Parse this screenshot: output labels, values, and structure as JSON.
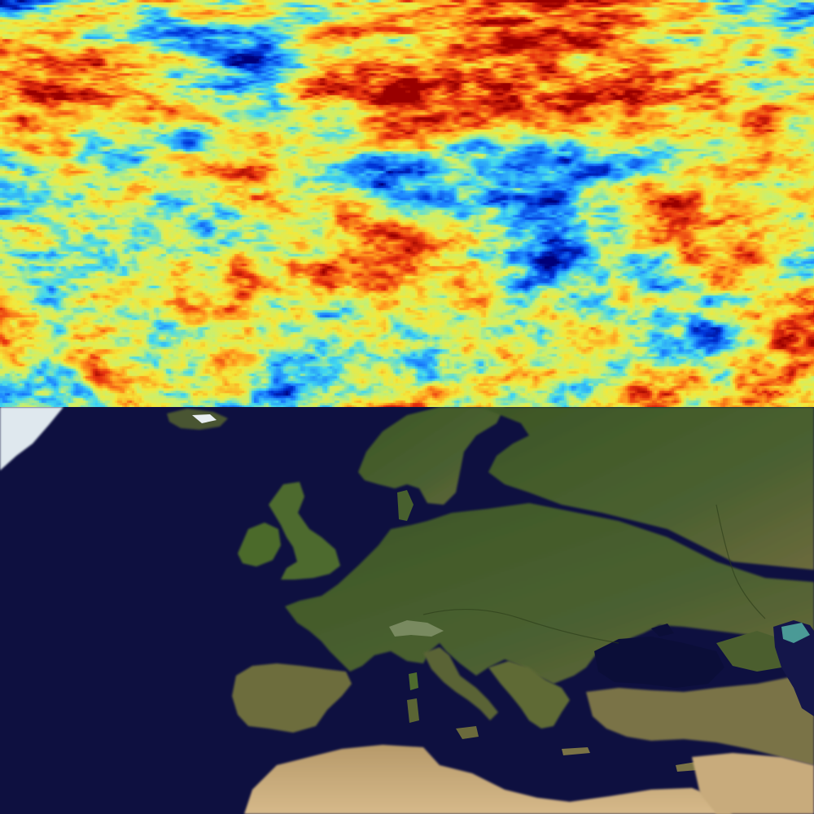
{
  "panels": [
    {
      "id": "cmb",
      "kind": "temperature-anisotropy-map",
      "colormap": [
        "#00007a",
        "#0033d6",
        "#1e88ff",
        "#42d8f0",
        "#c8f070",
        "#f4e83a",
        "#ff9a1e",
        "#e8330f",
        "#9a0000"
      ]
    },
    {
      "id": "earth",
      "kind": "satellite-map",
      "colors": {
        "ocean": "#0e1040",
        "land_green": "#3f5a26",
        "land_dark": "#2e441c",
        "desert": "#c9a876",
        "snow": "#e6eef2",
        "caspian": "#4a9a96"
      }
    }
  ]
}
